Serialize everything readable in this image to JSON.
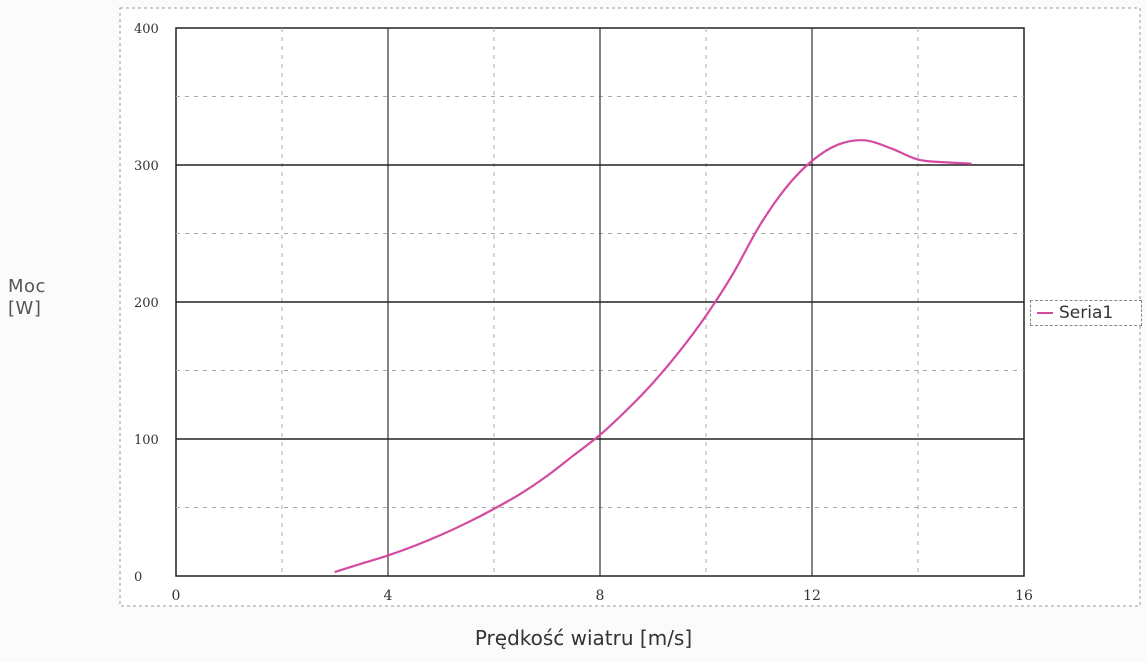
{
  "chart_data": {
    "type": "line",
    "title": "",
    "xlabel": "Prędkość wiatru [m/s]",
    "ylabel_lines": [
      "Moc",
      "[W]"
    ],
    "xlim": [
      0,
      16
    ],
    "ylim": [
      0,
      400
    ],
    "xticks": [
      0,
      4,
      8,
      12,
      16
    ],
    "xtick_labels": [
      "0",
      "4",
      "8",
      "12",
      "16"
    ],
    "yticks": [
      0,
      100,
      200,
      300,
      400
    ],
    "ytick_labels": [
      "0",
      "100",
      "200",
      "300",
      "400"
    ],
    "grid": true,
    "legend_position": "right",
    "series": [
      {
        "name": "Seria1",
        "color": "#d34aa0",
        "x": [
          3,
          3.5,
          4,
          4.5,
          5,
          5.5,
          6,
          6.5,
          7,
          7.5,
          8,
          8.5,
          9,
          9.5,
          10,
          10.5,
          11,
          11.5,
          12,
          12.5,
          13,
          13.5,
          14,
          14.5,
          15
        ],
        "y": [
          3,
          9,
          15,
          22,
          30,
          39,
          49,
          60,
          73,
          88,
          103,
          121,
          141,
          164,
          190,
          220,
          255,
          283,
          303,
          315,
          318,
          312,
          304,
          302,
          301
        ]
      }
    ]
  }
}
